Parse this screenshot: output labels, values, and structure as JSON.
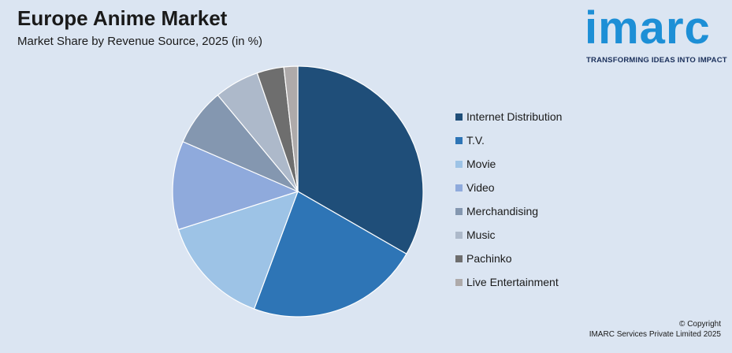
{
  "header": {
    "title": "Europe Anime Market",
    "subtitle": "Market Share by Revenue Source, 2025 (in %)"
  },
  "logo": {
    "word": "imarc",
    "tagline": "TRANSFORMING IDEAS INTO IMPACT"
  },
  "footer": {
    "copyright": "© Copyright",
    "company": "IMARC Services Private Limited 2025"
  },
  "chart_data": {
    "type": "pie",
    "title": "Europe Anime Market",
    "subtitle": "Market Share by Revenue Source, 2025 (in %)",
    "legend_position": "right",
    "categories": [
      "Internet Distribution",
      "T.V.",
      "Movie",
      "Video",
      "Merchandising",
      "Music",
      "Pachinko",
      "Live Entertainment"
    ],
    "values": [
      33.5,
      22.5,
      14.5,
      11.5,
      7.5,
      5.8,
      3.5,
      1.8
    ],
    "colors": [
      "#1f4e79",
      "#2e75b6",
      "#9dc3e6",
      "#8faadc",
      "#8497b0",
      "#adb9ca",
      "#6e6e6e",
      "#aeaaaa"
    ]
  }
}
